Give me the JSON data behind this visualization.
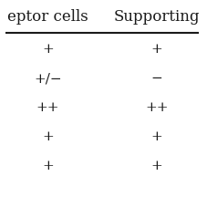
{
  "header_left": "eptor cells",
  "header_right": "Supporting",
  "col1_values": [
    "+",
    "+/−",
    "++",
    "+",
    "+"
  ],
  "col2_values": [
    "+",
    "−",
    "++",
    "+",
    "+"
  ],
  "background_color": "#ffffff",
  "text_color": "#1a1a1a",
  "font_size": 11,
  "header_font_size": 12
}
